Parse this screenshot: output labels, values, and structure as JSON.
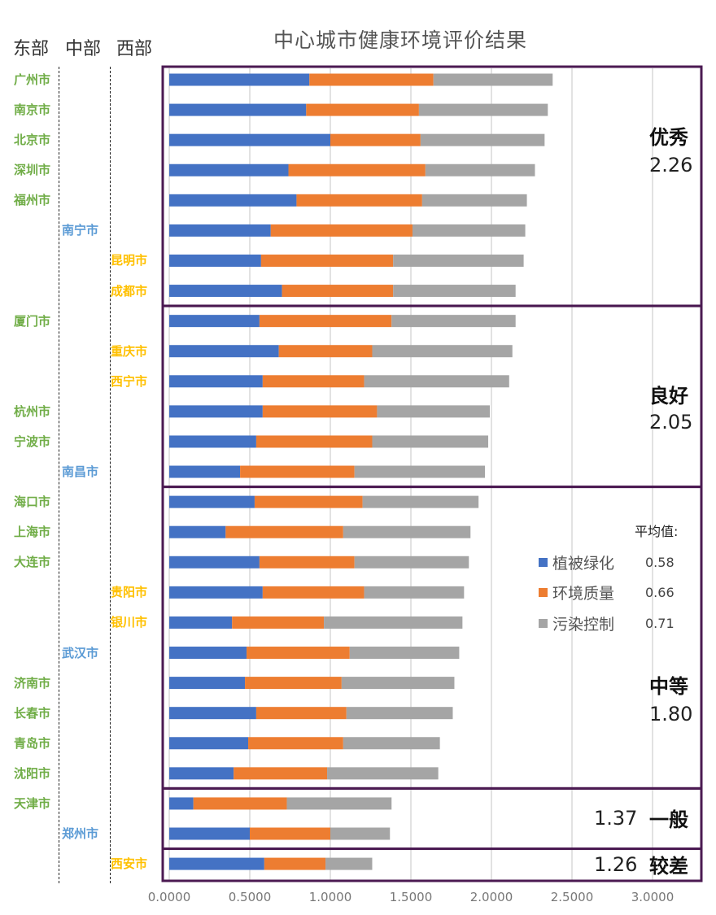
{
  "chart_data": {
    "type": "bar",
    "orientation": "horizontal",
    "stacked": true,
    "title": "中心城市健康环境评价结果",
    "xlabel": "",
    "ylabel": "",
    "xlim": [
      0,
      3.25
    ],
    "x_ticks": [
      "0.0000",
      "0.5000",
      "1.0000",
      "1.5000",
      "2.0000",
      "2.5000",
      "3.0000"
    ],
    "x_tick_values": [
      0,
      0.5,
      1.0,
      1.5,
      2.0,
      2.5,
      3.0
    ],
    "grid": true,
    "region_headers": [
      "东部",
      "中部",
      "西部"
    ],
    "region_colors": {
      "east": "#70ad47",
      "central": "#5b9bd5",
      "west": "#ffc000"
    },
    "categories": [
      {
        "city": "广州市",
        "region": "east"
      },
      {
        "city": "南京市",
        "region": "east"
      },
      {
        "city": "北京市",
        "region": "east"
      },
      {
        "city": "深圳市",
        "region": "east"
      },
      {
        "city": "福州市",
        "region": "east"
      },
      {
        "city": "南宁市",
        "region": "central"
      },
      {
        "city": "昆明市",
        "region": "west"
      },
      {
        "city": "成都市",
        "region": "west"
      },
      {
        "city": "厦门市",
        "region": "east"
      },
      {
        "city": "重庆市",
        "region": "west"
      },
      {
        "city": "西宁市",
        "region": "west"
      },
      {
        "city": "杭州市",
        "region": "east"
      },
      {
        "city": "宁波市",
        "region": "east"
      },
      {
        "city": "南昌市",
        "region": "central"
      },
      {
        "city": "海口市",
        "region": "east"
      },
      {
        "city": "上海市",
        "region": "east"
      },
      {
        "city": "大连市",
        "region": "east"
      },
      {
        "city": "贵阳市",
        "region": "west"
      },
      {
        "city": "银川市",
        "region": "west"
      },
      {
        "city": "武汉市",
        "region": "central"
      },
      {
        "city": "济南市",
        "region": "east"
      },
      {
        "city": "长春市",
        "region": "east"
      },
      {
        "city": "青岛市",
        "region": "east"
      },
      {
        "city": "沈阳市",
        "region": "east"
      },
      {
        "city": "天津市",
        "region": "east"
      },
      {
        "city": "郑州市",
        "region": "central"
      },
      {
        "city": "西安市",
        "region": "west"
      }
    ],
    "series": [
      {
        "name": "植被绿化",
        "color": "#4472c4",
        "average": "0.58",
        "values": [
          0.87,
          0.85,
          1.0,
          0.74,
          0.79,
          0.63,
          0.57,
          0.7,
          0.56,
          0.68,
          0.58,
          0.58,
          0.54,
          0.44,
          0.53,
          0.35,
          0.56,
          0.58,
          0.39,
          0.48,
          0.47,
          0.54,
          0.49,
          0.4,
          0.15,
          0.5,
          0.59
        ]
      },
      {
        "name": "环境质量",
        "color": "#ed7d31",
        "average": "0.66",
        "values": [
          0.77,
          0.7,
          0.56,
          0.85,
          0.78,
          0.88,
          0.82,
          0.69,
          0.82,
          0.58,
          0.63,
          0.71,
          0.72,
          0.71,
          0.67,
          0.73,
          0.59,
          0.63,
          0.57,
          0.64,
          0.6,
          0.56,
          0.59,
          0.58,
          0.58,
          0.5,
          0.38
        ]
      },
      {
        "name": "污染控制",
        "color": "#a5a5a5",
        "average": "0.71",
        "values": [
          0.74,
          0.8,
          0.77,
          0.68,
          0.65,
          0.7,
          0.81,
          0.76,
          0.77,
          0.87,
          0.9,
          0.7,
          0.72,
          0.81,
          0.72,
          0.79,
          0.71,
          0.62,
          0.86,
          0.68,
          0.7,
          0.66,
          0.6,
          0.69,
          0.65,
          0.37,
          0.29
        ]
      }
    ],
    "groups": [
      {
        "label": "优秀",
        "score": "2.26",
        "rows": 8
      },
      {
        "label": "良好",
        "score": "2.05",
        "rows": 6
      },
      {
        "label": "中等",
        "score": "1.80",
        "rows": 10
      },
      {
        "label": "一般",
        "score": "1.37",
        "rows": 2
      },
      {
        "label": "较差",
        "score": "1.26",
        "rows": 1
      }
    ],
    "legend": {
      "title": "平均值:",
      "placement": "right-middle"
    }
  }
}
